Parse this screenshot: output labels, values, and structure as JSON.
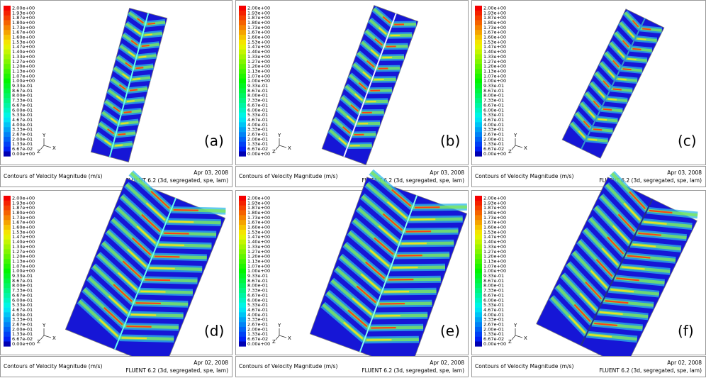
{
  "colorbar": {
    "labels": [
      "2.00e+00",
      "1.93e+00",
      "1.87e+00",
      "1.80e+00",
      "1.73e+00",
      "1.67e+00",
      "1.60e+00",
      "1.53e+00",
      "1.47e+00",
      "1.40e+00",
      "1.33e+00",
      "1.27e+00",
      "1.20e+00",
      "1.13e+00",
      "1.07e+00",
      "1.00e+00",
      "9.33e-01",
      "8.67e-01",
      "8.00e-01",
      "7.33e-01",
      "6.67e-01",
      "6.00e-01",
      "5.33e-01",
      "4.67e-01",
      "4.00e-01",
      "3.33e-01",
      "2.67e-01",
      "2.00e-01",
      "1.33e-01",
      "6.67e-02",
      "0.00e+00"
    ]
  },
  "panels": [
    {
      "label": "(a)",
      "axes": {
        "y": "Y",
        "z": "Z",
        "x": "X"
      },
      "footer": {
        "title": "Contours of Velocity Magnitude (m/s)",
        "date": "Apr 03, 2008",
        "solver": "FLUENT 6.2 (3d, segregated, spe, lam)"
      }
    },
    {
      "label": "(b)",
      "axes": {
        "y": "Y",
        "z": "Z",
        "x": "X"
      },
      "footer": {
        "title": "Contours of Velocity Magnitude (m/s)",
        "date": "Apr 03, 2008",
        "solver": "FLUENT 6.2 (3d, segregated, spe, lam)"
      }
    },
    {
      "label": "(c)",
      "axes": {
        "y": "Y",
        "z": "Z",
        "x": "X"
      },
      "footer": {
        "title": "Contours of Velocity Magnitude (m/s)",
        "date": "Apr 03, 2008",
        "solver": "FLUENT 6.2 (3d, segregated, spe, lam)"
      }
    },
    {
      "label": "(d)",
      "axes": {
        "y": "Y",
        "z": "Z",
        "x": "X"
      },
      "footer": {
        "title": "Contours of Velocity Magnitude (m/s)",
        "date": "Apr 02, 2008",
        "solver": "FLUENT 6.2 (3d, segregated, spe, lam)"
      }
    },
    {
      "label": "(e)",
      "axes": {
        "y": "Y",
        "z": "Z",
        "x": "X"
      },
      "footer": {
        "title": "Contours of Velocity Magnitude (m/s)",
        "date": "Apr 02, 2008",
        "solver": "FLUENT 6.2 (3d, segregated, spe, lam)"
      }
    },
    {
      "label": "(f)",
      "axes": {
        "y": "Y",
        "z": "Z",
        "x": "X"
      },
      "footer": {
        "title": "Contours of Velocity Magnitude (m/s)",
        "date": "Apr 02, 2008",
        "solver": "FLUENT 6.2 (3d, segregated, spe, lam)"
      }
    }
  ]
}
